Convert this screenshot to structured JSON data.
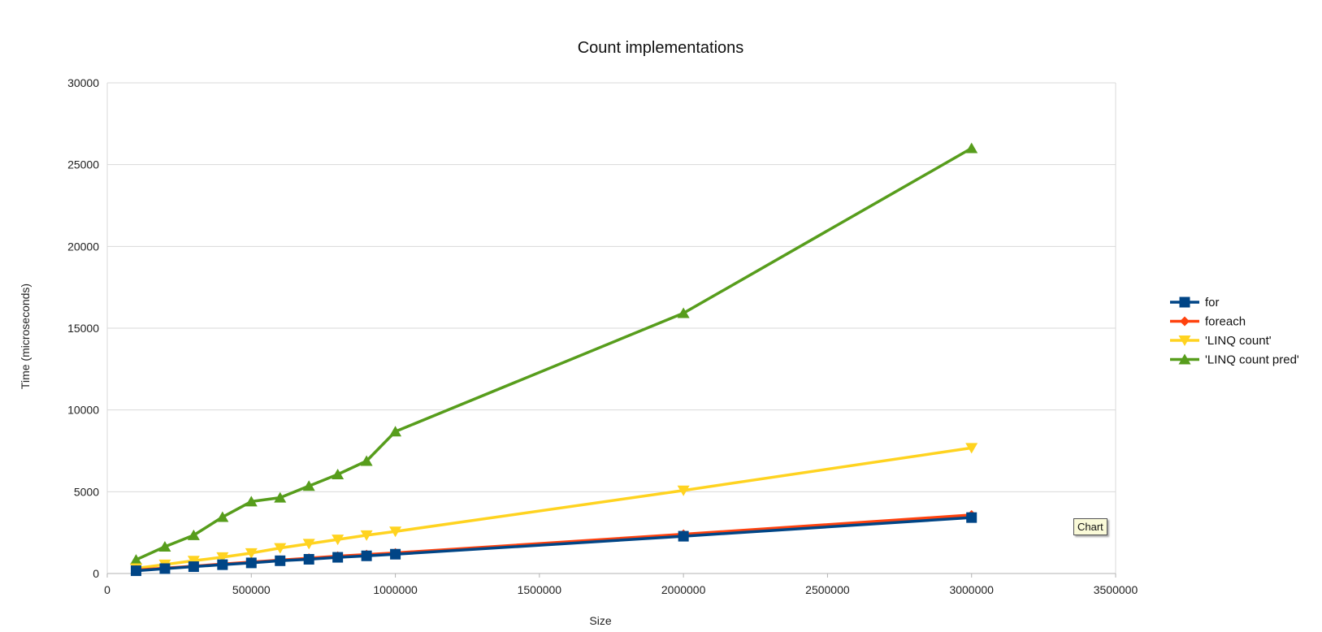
{
  "tooltip": {
    "text": "Chart"
  },
  "chart_data": {
    "type": "line",
    "title": "Count implementations",
    "xlabel": "Size",
    "ylabel": "Time (microseconds)",
    "xlim": [
      0,
      3500000
    ],
    "ylim": [
      0,
      30000
    ],
    "x_ticks": [
      0,
      500000,
      1000000,
      1500000,
      2000000,
      2500000,
      3000000,
      3500000
    ],
    "y_ticks": [
      0,
      5000,
      10000,
      15000,
      20000,
      25000,
      30000
    ],
    "grid": "horizontal",
    "legend_position": "right",
    "x": [
      100000,
      200000,
      300000,
      400000,
      500000,
      600000,
      700000,
      800000,
      900000,
      1000000,
      2000000,
      3000000
    ],
    "series": [
      {
        "name": "for",
        "color": "#004586",
        "marker": "square",
        "values": [
          170,
          300,
          420,
          540,
          650,
          780,
          870,
          990,
          1080,
          1180,
          2280,
          3420
        ]
      },
      {
        "name": "foreach",
        "color": "#ff420e",
        "marker": "diamond",
        "values": [
          210,
          330,
          450,
          580,
          700,
          820,
          940,
          1060,
          1160,
          1260,
          2400,
          3580
        ]
      },
      {
        "name": "'LINQ count'",
        "color": "#ffd320",
        "marker": "triangle-down",
        "values": [
          320,
          550,
          780,
          1000,
          1250,
          1560,
          1820,
          2080,
          2340,
          2570,
          5080,
          7680
        ]
      },
      {
        "name": "'LINQ count pred'",
        "color": "#579d1c",
        "marker": "triangle-up",
        "values": [
          840,
          1640,
          2340,
          3450,
          4400,
          4640,
          5350,
          6060,
          6880,
          8680,
          15920,
          26000
        ]
      }
    ]
  }
}
